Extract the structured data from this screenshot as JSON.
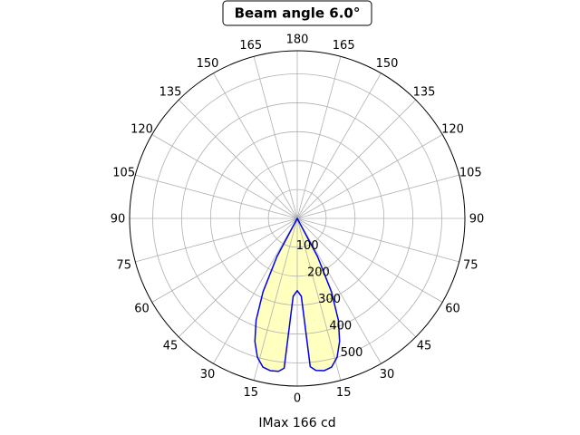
{
  "chart_data": {
    "type": "polar",
    "title": "Beam angle 6.0°",
    "xlabel": "IMax 166 cd",
    "angle_tick_labels": [
      "180",
      "165",
      "150",
      "135",
      "120",
      "105",
      "90",
      "75",
      "60",
      "45",
      "30",
      "15",
      "0",
      "15",
      "30",
      "45",
      "60",
      "75",
      "90",
      "105",
      "120",
      "135",
      "150",
      "165"
    ],
    "angle_ticks_deg": [
      180,
      165,
      150,
      135,
      120,
      105,
      90,
      75,
      60,
      45,
      30,
      15,
      0,
      -15,
      -30,
      -45,
      -60,
      -75,
      -90,
      -105,
      -120,
      -135,
      -150,
      -165
    ],
    "radial_tick_labels": [
      "100",
      "200",
      "300",
      "400",
      "500"
    ],
    "radial_ticks": [
      100,
      200,
      300,
      400,
      500
    ],
    "rlim": [
      0,
      580
    ],
    "grid": true,
    "series": [
      {
        "color": "#0000ee",
        "fill": "#ffffc0",
        "points": [
          {
            "angle": -28,
            "r": 150
          },
          {
            "angle": -25,
            "r": 280
          },
          {
            "angle": -22,
            "r": 380
          },
          {
            "angle": -19,
            "r": 450
          },
          {
            "angle": -16,
            "r": 500
          },
          {
            "angle": -13,
            "r": 528
          },
          {
            "angle": -10,
            "r": 535
          },
          {
            "angle": -7,
            "r": 533
          },
          {
            "angle": -5,
            "r": 520
          },
          {
            "angle": -3,
            "r": 270
          },
          {
            "angle": 0,
            "r": 250
          },
          {
            "angle": 3,
            "r": 270
          },
          {
            "angle": 5,
            "r": 515
          },
          {
            "angle": 7,
            "r": 530
          },
          {
            "angle": 10,
            "r": 535
          },
          {
            "angle": 13,
            "r": 528
          },
          {
            "angle": 16,
            "r": 500
          },
          {
            "angle": 19,
            "r": 450
          },
          {
            "angle": 22,
            "r": 380
          },
          {
            "angle": 25,
            "r": 280
          },
          {
            "angle": 28,
            "r": 150
          }
        ]
      }
    ]
  }
}
